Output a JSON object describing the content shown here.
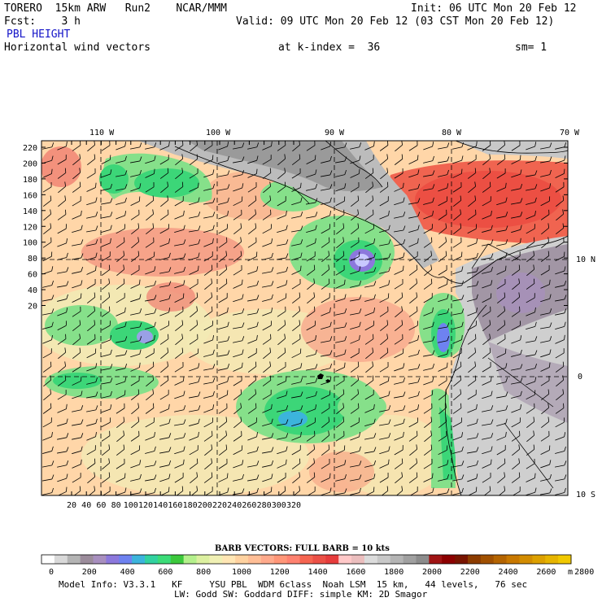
{
  "header": {
    "model": "TORERO  15km ARW   Run2    NCAR/MMM",
    "init": "Init: 06 UTC Mon 20 Feb 12",
    "fcst_label": "Fcst:    3 h",
    "valid": "Valid: 09 UTC Mon 20 Feb 12 (03 CST Mon 20 Feb 12)",
    "field_title": "PBL HEIGHT",
    "vector_title": "Horizontal wind vectors",
    "k_index": "at k-index =  36",
    "smoothing": "sm= 1"
  },
  "axes": {
    "lon_labels": [
      "110 W",
      "100 W",
      "90 W",
      "80 W",
      "70 W"
    ],
    "lat_labels": [
      "10 N",
      "0",
      "10 S"
    ],
    "y_ticks": [
      "220",
      "200",
      "180",
      "160",
      "140",
      "120",
      "100",
      "80",
      "60",
      "40",
      "20"
    ],
    "x_ticks": [
      "20",
      "40",
      "60",
      "80",
      "100",
      "120",
      "140",
      "160",
      "180",
      "200",
      "220",
      "240",
      "260",
      "280",
      "300",
      "320"
    ]
  },
  "barb_legend": "BARB VECTORS:  FULL BARB = 10 kts",
  "colorbar": {
    "labels": [
      "0",
      "200",
      "400",
      "600",
      "800",
      "1000",
      "1200",
      "1400",
      "1600",
      "1800",
      "2000",
      "2200",
      "2400",
      "2600",
      "2800"
    ],
    "unit": "m",
    "colors": [
      "#ffffff",
      "#d9d9d9",
      "#b4b4b4",
      "#9b8c9b",
      "#a88fbf",
      "#8c78dc",
      "#6e82f0",
      "#3cb4dc",
      "#32d2a0",
      "#3cdc78",
      "#3cc83c",
      "#b4f08c",
      "#dcf0a0",
      "#f0f0b4",
      "#ffe6b4",
      "#ffd2a0",
      "#ffbe96",
      "#ffaa8c",
      "#ff9678",
      "#ff8270",
      "#f56450",
      "#eb5046",
      "#e63c3c",
      "#ffc8c8",
      "#ebbebe",
      "#dcdcdc",
      "#c8c8c8",
      "#b4b4b4",
      "#a0a0a0",
      "#8c8c8c",
      "#a01414",
      "#8c0000",
      "#781400",
      "#8c3c00",
      "#a05000",
      "#b46400",
      "#c87800",
      "#d28c00",
      "#dca000",
      "#e6b400",
      "#f0c800"
    ]
  },
  "footer": {
    "line1": "Model Info: V3.3.1   KF     YSU PBL  WDM 6class  Noah LSM  15 km,   44 levels,   76 sec",
    "line2": "LW: Godd SW: Goddard DIFF: simple KM: 2D Smagor"
  }
}
